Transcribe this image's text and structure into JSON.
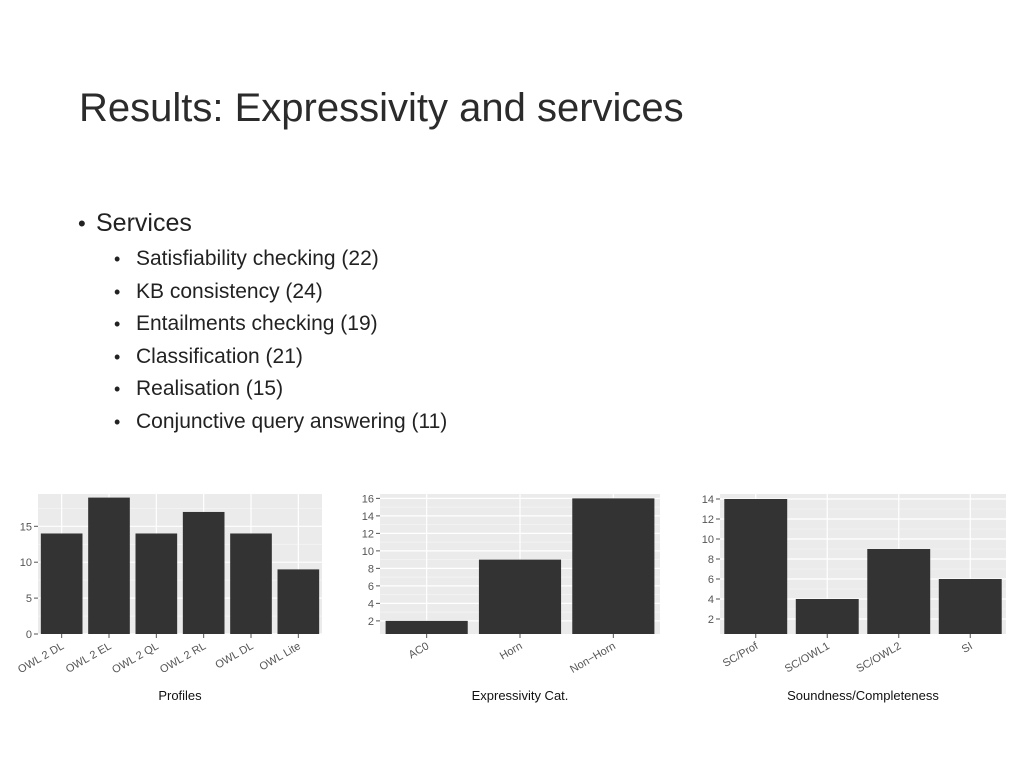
{
  "slide": {
    "title": "Results: Expressivity and services",
    "bullet_main": "Services",
    "sub_items": [
      "Satisfiability checking (22)",
      "KB consistency (24)",
      "Entailments checking (19)",
      "Classification (21)",
      "Realisation (15)",
      "Conjunctive query answering (11)"
    ]
  },
  "chart_data": [
    {
      "type": "bar",
      "categories": [
        "OWL 2 DL",
        "OWL 2 EL",
        "OWL 2 QL",
        "OWL 2 RL",
        "OWL DL",
        "OWL Lite"
      ],
      "values": [
        14,
        19,
        14,
        17,
        14,
        9
      ],
      "xlabel": "Profiles",
      "ylabel": "",
      "ylim": [
        0,
        19.5
      ],
      "yticks": [
        0,
        5,
        10,
        15
      ],
      "grid": true,
      "colors": {
        "bar": "#333333",
        "panel": "#ebebeb"
      }
    },
    {
      "type": "bar",
      "categories": [
        "AC0",
        "Horn",
        "Non−Horn"
      ],
      "values": [
        2,
        9,
        16
      ],
      "xlabel": "Expressivity Cat.",
      "ylabel": "",
      "ylim": [
        0.5,
        16.5
      ],
      "yticks": [
        2,
        4,
        6,
        8,
        10,
        12,
        14,
        16
      ],
      "grid": true,
      "colors": {
        "bar": "#333333",
        "panel": "#ebebeb"
      }
    },
    {
      "type": "bar",
      "categories": [
        "SC/Prof",
        "SC/OWL1",
        "SC/OWL2",
        "SI"
      ],
      "values": [
        14,
        4,
        9,
        6
      ],
      "xlabel": "Soundness/Completeness",
      "ylabel": "",
      "ylim": [
        0.5,
        14.5
      ],
      "yticks": [
        2,
        4,
        6,
        8,
        10,
        12,
        14
      ],
      "grid": true,
      "colors": {
        "bar": "#333333",
        "panel": "#ebebeb"
      }
    }
  ]
}
